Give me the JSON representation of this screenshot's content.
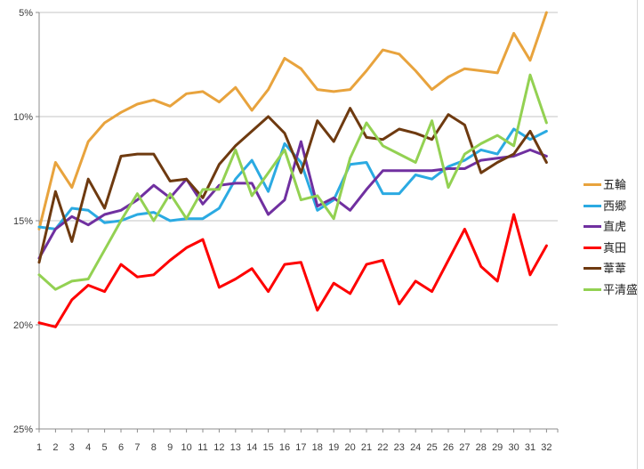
{
  "chart_data": {
    "type": "line",
    "title": "",
    "xlabel": "",
    "ylabel": "",
    "x_tick_labels": [
      "1",
      "2",
      "3",
      "4",
      "5",
      "6",
      "7",
      "8",
      "9",
      "10",
      "11",
      "12",
      "13",
      "14",
      "15",
      "16",
      "17",
      "18",
      "19",
      "20",
      "21",
      "22",
      "23",
      "24",
      "25",
      "26",
      "27",
      "28",
      "29",
      "30",
      "31",
      "32"
    ],
    "y_axis": {
      "tick_labels": [
        "5%",
        "10%",
        "15%",
        "20%",
        "25%"
      ],
      "tick_values": [
        5,
        10,
        15,
        20,
        25
      ],
      "min": 5,
      "max": 25,
      "inverted": true,
      "unit": "%"
    },
    "grid": true,
    "legend_position": "right",
    "series": [
      {
        "name": "五輪",
        "color": "#E8A33D",
        "values": [
          15.4,
          12.2,
          13.4,
          11.2,
          10.3,
          9.8,
          9.4,
          9.2,
          9.5,
          8.9,
          8.8,
          9.3,
          8.6,
          9.7,
          8.7,
          7.2,
          7.7,
          8.7,
          8.8,
          8.7,
          7.8,
          6.8,
          7.0,
          7.8,
          8.7,
          8.1,
          7.7,
          7.8,
          7.9,
          6.0,
          7.3,
          5.0
        ]
      },
      {
        "name": "西郷",
        "color": "#2BAAE2",
        "values": [
          15.3,
          15.4,
          14.4,
          14.5,
          15.1,
          15.0,
          14.7,
          14.6,
          15.0,
          14.9,
          14.9,
          14.4,
          13.0,
          12.1,
          13.6,
          11.3,
          12.2,
          14.5,
          14.0,
          12.3,
          12.2,
          13.7,
          13.7,
          12.8,
          13.0,
          12.4,
          12.1,
          11.6,
          11.8,
          10.6,
          11.1,
          10.7
        ]
      },
      {
        "name": "直虎",
        "color": "#7030A0",
        "values": [
          16.8,
          15.4,
          14.8,
          15.2,
          14.7,
          14.5,
          14.0,
          13.3,
          13.9,
          13.0,
          14.2,
          13.3,
          13.2,
          13.2,
          14.7,
          14.0,
          11.2,
          14.3,
          13.9,
          14.5,
          13.5,
          12.6,
          12.6,
          12.6,
          12.6,
          12.5,
          12.5,
          12.1,
          12.0,
          11.9,
          11.6,
          11.9
        ]
      },
      {
        "name": "真田",
        "color": "#FE0000",
        "values": [
          19.9,
          20.1,
          18.8,
          18.1,
          18.4,
          17.1,
          17.7,
          17.6,
          16.9,
          16.3,
          15.9,
          18.2,
          17.8,
          17.3,
          18.4,
          17.1,
          17.0,
          19.3,
          18.0,
          18.5,
          17.1,
          16.9,
          19.0,
          17.9,
          18.4,
          16.9,
          15.4,
          17.2,
          17.9,
          14.7,
          17.6,
          16.2
        ]
      },
      {
        "name": "葦葦",
        "color": "#6E3A10",
        "values": [
          17.0,
          13.6,
          16.0,
          13.0,
          14.4,
          11.9,
          11.8,
          11.8,
          13.1,
          13.0,
          13.9,
          12.3,
          11.4,
          10.7,
          10.0,
          10.8,
          12.7,
          10.2,
          11.2,
          9.6,
          11.0,
          11.1,
          10.6,
          10.8,
          11.1,
          9.9,
          10.4,
          12.7,
          12.2,
          11.8,
          10.7,
          12.2
        ]
      },
      {
        "name": "平清盛",
        "color": "#93D152",
        "values": [
          17.6,
          18.3,
          17.9,
          17.8,
          16.4,
          15.0,
          13.7,
          15.0,
          13.7,
          14.9,
          13.5,
          13.5,
          11.6,
          13.8,
          12.7,
          11.6,
          14.0,
          13.8,
          14.9,
          12.0,
          10.3,
          11.4,
          11.8,
          12.2,
          10.2,
          13.4,
          11.8,
          11.3,
          10.9,
          11.4,
          8.0,
          10.3
        ]
      }
    ]
  },
  "colors": {
    "background": "#FFFFFF",
    "gridline": "#C6C6C6",
    "axis": "#8C8C8C",
    "label_text": "#3B3B3B",
    "border_line": "#D9D9D9"
  }
}
